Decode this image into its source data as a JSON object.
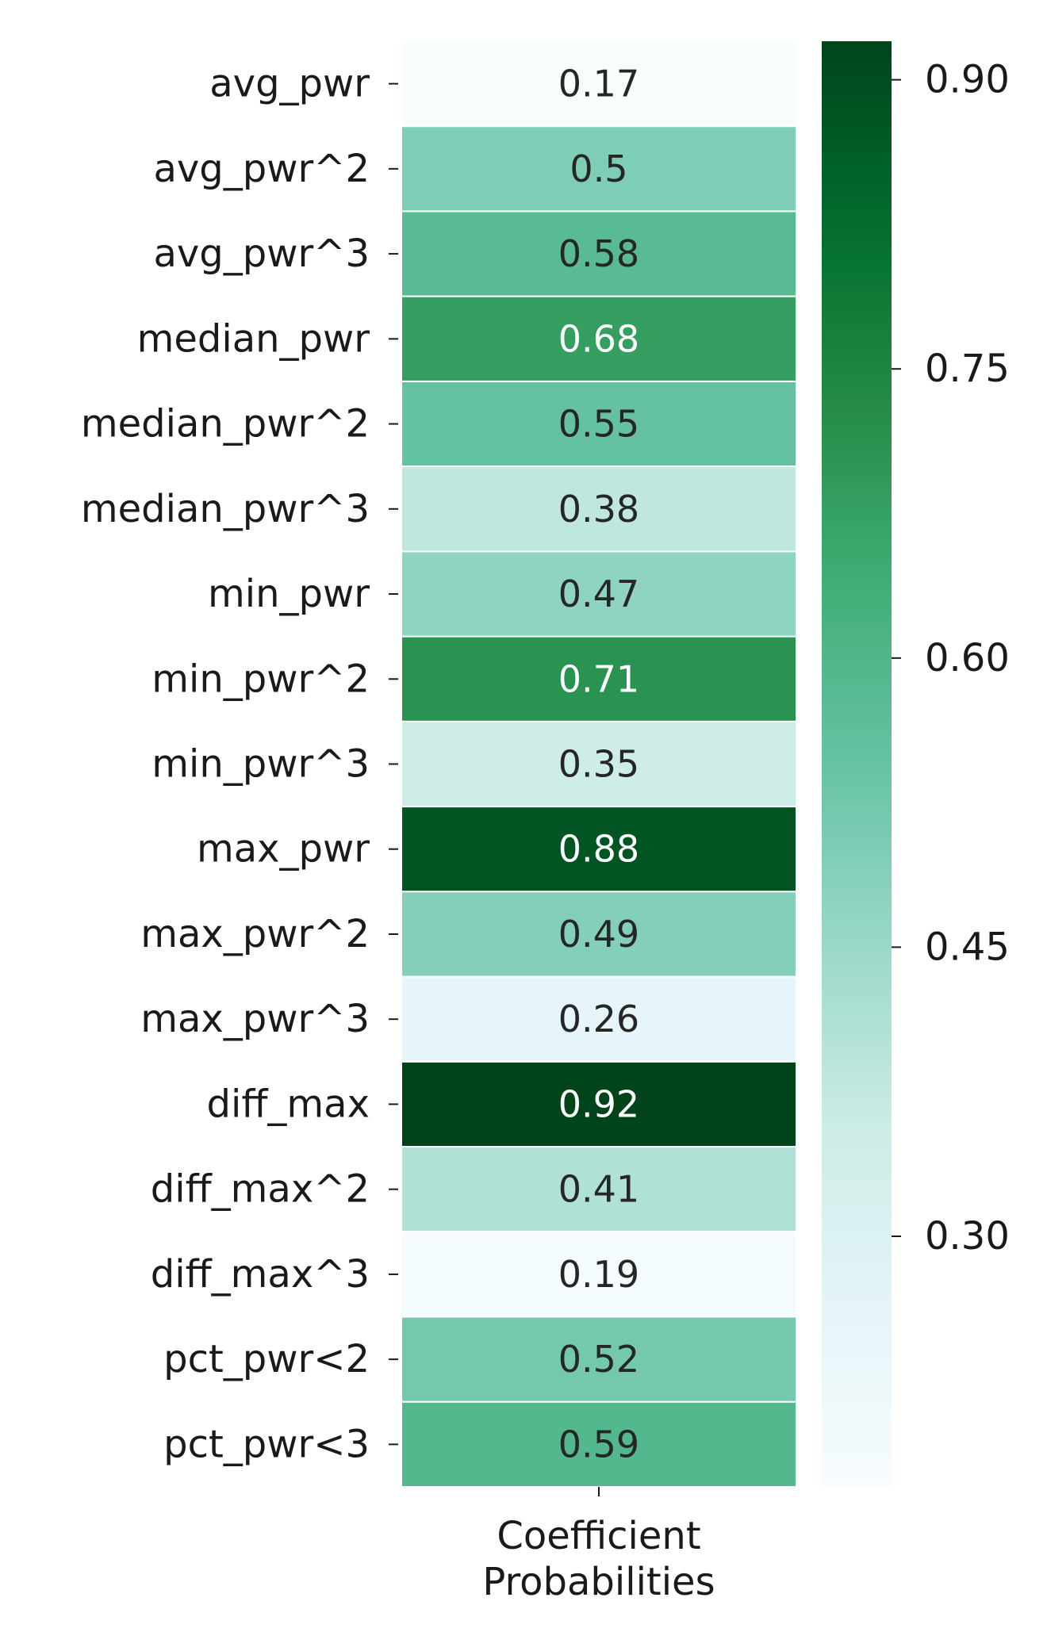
{
  "chart_data": {
    "type": "heatmap",
    "xlabel": "Coefficient\nProbabilities",
    "rows": [
      "avg_pwr",
      "avg_pwr^2",
      "avg_pwr^3",
      "median_pwr",
      "median_pwr^2",
      "median_pwr^3",
      "min_pwr",
      "min_pwr^2",
      "min_pwr^3",
      "max_pwr",
      "max_pwr^2",
      "max_pwr^3",
      "diff_max",
      "diff_max^2",
      "diff_max^3",
      "pct_pwr<2",
      "pct_pwr<3"
    ],
    "values": [
      0.17,
      0.5,
      0.58,
      0.68,
      0.55,
      0.38,
      0.47,
      0.71,
      0.35,
      0.88,
      0.49,
      0.26,
      0.92,
      0.41,
      0.19,
      0.52,
      0.59
    ],
    "value_labels": [
      "0.17",
      "0.5",
      "0.58",
      "0.68",
      "0.55",
      "0.38",
      "0.47",
      "0.71",
      "0.35",
      "0.88",
      "0.49",
      "0.26",
      "0.92",
      "0.41",
      "0.19",
      "0.52",
      "0.59"
    ],
    "colormap": "BuGn",
    "vmin": 0.17,
    "vmax": 0.92,
    "colorbar": {
      "ticks": [
        0.3,
        0.45,
        0.6,
        0.75,
        0.9
      ],
      "tick_labels": [
        "0.30",
        "0.45",
        "0.60",
        "0.75",
        "0.90"
      ]
    },
    "cell_border_color": "#ffffff",
    "text_color_dark": "#262626",
    "text_color_light": "#ffffff"
  }
}
